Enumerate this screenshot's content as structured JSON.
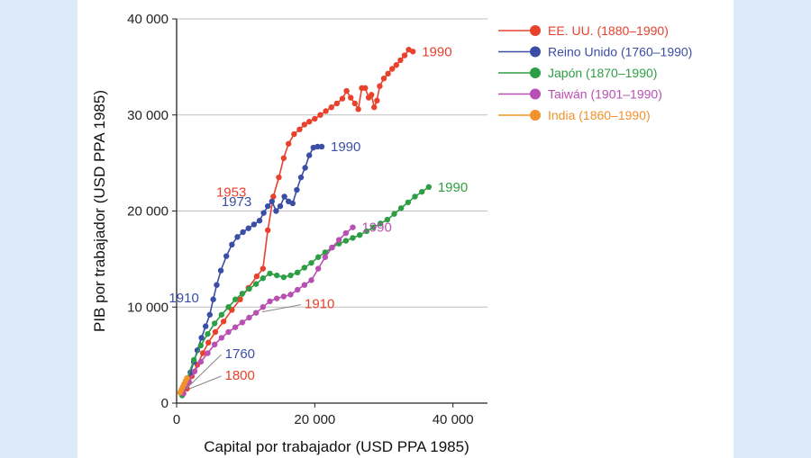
{
  "chart_data": {
    "type": "line",
    "title": "",
    "xlabel": "Capital por trabajador (USD PPA 1985)",
    "ylabel": "PIB por trabajador (USD PPA 1985)",
    "xlim": [
      0,
      45000
    ],
    "ylim": [
      0,
      40000
    ],
    "xticks": [
      0,
      20000,
      40000
    ],
    "yticks": [
      0,
      10000,
      20000,
      30000,
      40000
    ],
    "xtick_labels": [
      "0",
      "20 000",
      "40 000"
    ],
    "ytick_labels": [
      "0",
      "10 000",
      "20 000",
      "30 000",
      "40 000"
    ],
    "grid": "horizontal",
    "legend_position": "right",
    "series": [
      {
        "name": "EE. UU. (1880–1990)",
        "color": "#e8412c",
        "x": [
          1500,
          2200,
          3000,
          3800,
          4600,
          5600,
          6800,
          8000,
          9200,
          10400,
          11600,
          12500,
          13200,
          14000,
          14800,
          15500,
          16200,
          17000,
          17800,
          18500,
          19200,
          20000,
          20800,
          21600,
          22400,
          23200,
          24000,
          24600,
          25200,
          25800,
          26300,
          26800,
          27300,
          27800,
          28200,
          28600,
          29000,
          29400,
          30000,
          30600,
          31200,
          31800,
          32400,
          33000,
          33600,
          34200
        ],
        "y": [
          1500,
          2800,
          4000,
          5200,
          6300,
          7400,
          8500,
          9700,
          10800,
          12000,
          13200,
          14000,
          18000,
          21500,
          23500,
          25500,
          27000,
          28000,
          28500,
          29000,
          29300,
          29600,
          30000,
          30400,
          30800,
          31200,
          31700,
          32500,
          31800,
          31200,
          30600,
          32800,
          32800,
          31800,
          32100,
          30800,
          31500,
          33000,
          33800,
          34300,
          34800,
          35200,
          35700,
          36200,
          36800,
          36600
        ],
        "end_label": "1990",
        "annotations": [
          {
            "text": "1800",
            "x": 1500,
            "y": 1500
          },
          {
            "text": "1910",
            "x": 12000,
            "y": 9500
          },
          {
            "text": "1953",
            "x": 14000,
            "y": 21500
          }
        ]
      },
      {
        "name": "Reino Unido (1760–1990)",
        "color": "#3b4ea6",
        "x": [
          1000,
          1500,
          2000,
          2500,
          3000,
          3600,
          4200,
          4800,
          5300,
          5800,
          6400,
          7200,
          8000,
          8800,
          9600,
          10400,
          11200,
          12000,
          12600,
          13200,
          13800,
          14400,
          15000,
          15600,
          16200,
          16800,
          17400,
          18000,
          18600,
          19200,
          19800,
          20400,
          21000
        ],
        "y": [
          1500,
          2200,
          3200,
          4300,
          5500,
          6800,
          8000,
          9200,
          10800,
          12300,
          13800,
          15300,
          16500,
          17300,
          17800,
          18200,
          18600,
          19000,
          19800,
          20500,
          21000,
          20000,
          20500,
          21500,
          21000,
          20800,
          22200,
          23500,
          24500,
          25800,
          26600,
          26700,
          26700
        ],
        "end_label": "1990",
        "annotations": [
          {
            "text": "1760",
            "x": 1000,
            "y": 1500
          },
          {
            "text": "1910",
            "x": 4800,
            "y": 9200
          },
          {
            "text": "1973",
            "x": 13200,
            "y": 20500
          }
        ]
      },
      {
        "name": "Japón (1870–1990)",
        "color": "#2e9e44",
        "x": [
          800,
          1500,
          2500,
          3500,
          4500,
          5500,
          6500,
          7500,
          8500,
          9500,
          10500,
          11500,
          12500,
          13500,
          14500,
          15500,
          16500,
          17500,
          18500,
          19500,
          20500,
          21500,
          22500,
          23500,
          24500,
          25500,
          26500,
          27500,
          28500,
          29500,
          30500,
          31500,
          32500,
          33500,
          34500,
          35500,
          36500
        ],
        "y": [
          800,
          2500,
          4500,
          6000,
          7200,
          8300,
          9200,
          10000,
          10800,
          11400,
          11900,
          12400,
          13000,
          13500,
          13300,
          13100,
          13300,
          13600,
          14100,
          14600,
          15200,
          15700,
          16200,
          16600,
          16900,
          17200,
          17500,
          17900,
          18300,
          18700,
          19100,
          19700,
          20300,
          20900,
          21500,
          22000,
          22500
        ],
        "end_label": "1990",
        "annotations": []
      },
      {
        "name": "Taiwán (1901–1990)",
        "color": "#b84fb2",
        "x": [
          1000,
          1800,
          2600,
          3500,
          4500,
          5500,
          6500,
          7500,
          8500,
          9500,
          10500,
          11500,
          12500,
          13500,
          14500,
          15500,
          16500,
          17500,
          18500,
          19500,
          20500,
          21500,
          22500,
          23500,
          24500,
          25500
        ],
        "y": [
          1000,
          2200,
          3300,
          4300,
          5200,
          6100,
          6800,
          7400,
          7900,
          8400,
          8900,
          9400,
          10000,
          10600,
          10900,
          11100,
          11300,
          11800,
          12300,
          12800,
          14000,
          15200,
          16200,
          17000,
          17700,
          18300
        ],
        "end_label": "1990",
        "annotations": []
      },
      {
        "name": "India (1860–1990)",
        "color": "#f2922a",
        "x": [
          500,
          700,
          900,
          1100,
          1300,
          1500
        ],
        "y": [
          1100,
          1400,
          1700,
          2000,
          2300,
          2600
        ],
        "end_label": "",
        "annotations": []
      }
    ]
  }
}
